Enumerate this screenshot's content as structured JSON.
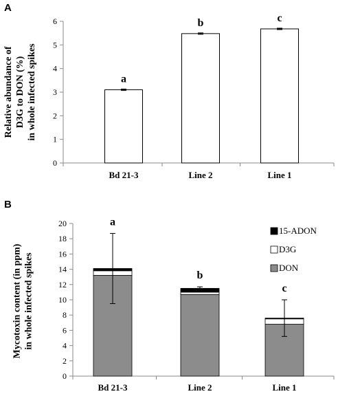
{
  "chart_data": [
    {
      "panel": "A",
      "type": "bar",
      "categories": [
        "Bd 21-3",
        "Line 2",
        "Line 1"
      ],
      "values": [
        3.1,
        5.48,
        5.68
      ],
      "errors": [
        0.03,
        0.03,
        0.03
      ],
      "significance": [
        "a",
        "b",
        "c"
      ],
      "ylabel_lines": [
        "Relative abundance of",
        "D3G to DON (%)",
        "in whole infected spikes"
      ],
      "ylim": [
        0,
        6
      ],
      "yticks": [
        "0",
        "1",
        "2",
        "3",
        "4",
        "5",
        "6"
      ],
      "bar_fill": "#ffffff",
      "grid": false
    },
    {
      "panel": "B",
      "type": "bar",
      "stacked": true,
      "categories": [
        "Bd 21-3",
        "Line 2",
        "Line 1"
      ],
      "series": [
        {
          "name": "DON",
          "values": [
            13.2,
            10.7,
            6.8
          ],
          "color": "#8c8c8c"
        },
        {
          "name": "D3G",
          "values": [
            0.6,
            0.3,
            0.7
          ],
          "color": "#ffffff"
        },
        {
          "name": "15-ADON",
          "values": [
            0.3,
            0.5,
            0.1
          ],
          "color": "#000000"
        }
      ],
      "errors": [
        4.6,
        0.2,
        2.4
      ],
      "significance": [
        "a",
        "b",
        "c"
      ],
      "ylabel_lines": [
        "Mycotoxin content (in ppm)",
        "in whole infected spikes"
      ],
      "ylim": [
        0,
        20
      ],
      "yticks": [
        "0",
        "2",
        "4",
        "6",
        "8",
        "10",
        "12",
        "14",
        "16",
        "18",
        "20"
      ],
      "legend_order": [
        "15-ADON",
        "D3G",
        "DON"
      ],
      "legend_position": "top-right",
      "grid": false
    }
  ]
}
